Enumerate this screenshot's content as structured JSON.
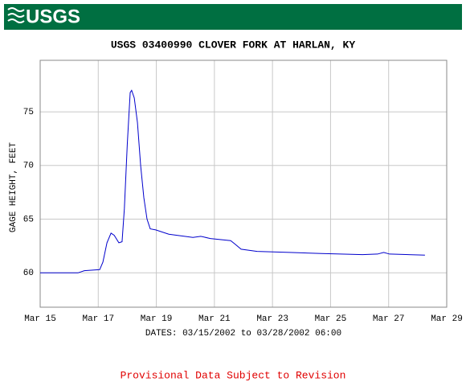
{
  "header": {
    "logo": "USGS"
  },
  "chart_data": {
    "type": "line",
    "title": "USGS 03400990 CLOVER FORK AT HARLAN, KY",
    "y_label": "GAGE HEIGHT, FEET",
    "x_label": "DATES: 03/15/2002 to 03/28/2002 06:00",
    "x": [
      15.0,
      16.3,
      16.52,
      17.05,
      17.16,
      17.3,
      17.44,
      17.55,
      17.71,
      17.82,
      17.9,
      18.0,
      18.1,
      18.15,
      18.24,
      18.35,
      18.46,
      18.57,
      18.68,
      18.79,
      18.98,
      19.43,
      20.26,
      20.53,
      20.86,
      21.56,
      21.7,
      21.92,
      22.47,
      23.58,
      24.69,
      26.1,
      26.62,
      26.83,
      27.03,
      28.25
    ],
    "values": [
      60.0,
      60.0,
      60.2,
      60.3,
      61.0,
      62.8,
      63.7,
      63.5,
      62.8,
      62.9,
      66,
      72,
      76.8,
      77.0,
      76.3,
      74,
      70,
      67,
      65,
      64.1,
      64.0,
      63.6,
      63.3,
      63.4,
      63.2,
      63.0,
      62.7,
      62.2,
      62.0,
      61.9,
      61.8,
      61.7,
      61.75,
      61.9,
      61.75,
      61.65
    ],
    "color": "#0000cc",
    "xlim": [
      15,
      29
    ],
    "xticks": [
      {
        "value": 15,
        "label": "Mar 15"
      },
      {
        "value": 17,
        "label": "Mar 17"
      },
      {
        "value": 19,
        "label": "Mar 19"
      },
      {
        "value": 21,
        "label": "Mar 21"
      },
      {
        "value": 23,
        "label": "Mar 23"
      },
      {
        "value": 25,
        "label": "Mar 25"
      },
      {
        "value": 27,
        "label": "Mar 27"
      },
      {
        "value": 29,
        "label": "Mar 29"
      }
    ],
    "ylim": [
      56.8,
      79.8
    ],
    "yticks": [
      60,
      65,
      70,
      75
    ],
    "grid": true
  },
  "footer": {
    "note": "Provisional Data Subject to Revision"
  }
}
